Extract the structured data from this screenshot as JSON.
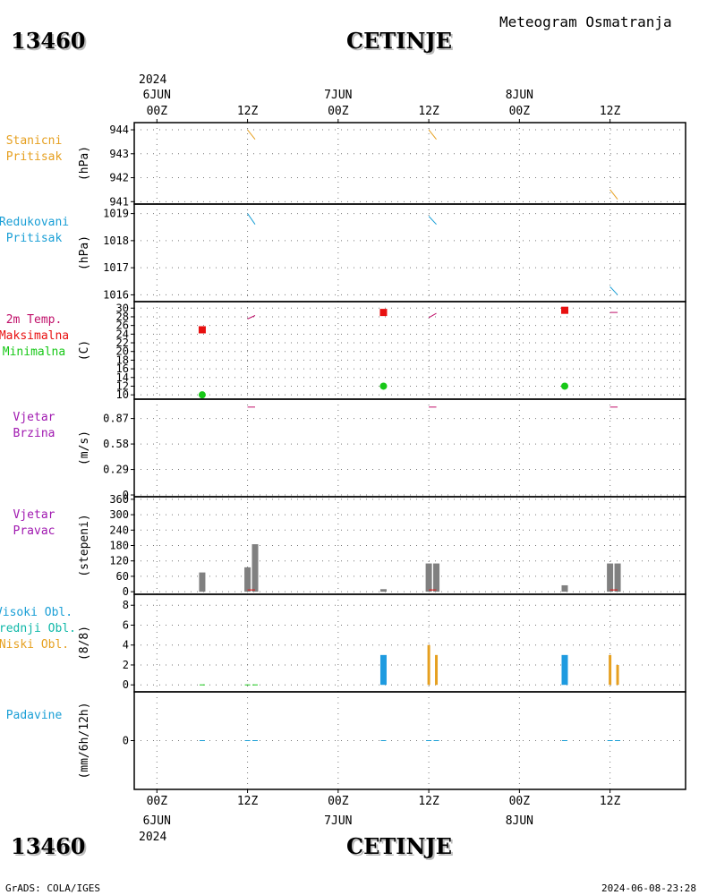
{
  "header": {
    "station_id": "13460",
    "station_name": "CETINJE",
    "title": "Meteogram Osmatranja"
  },
  "footer": {
    "credit": "GrADS: COLA/IGES",
    "timestamp": "2024-06-08-23:28"
  },
  "time_axis": {
    "top_year": "2024",
    "bottom_year": "2024",
    "ticks": [
      {
        "t": 0,
        "hour": "00Z",
        "date": "6JUN"
      },
      {
        "t": 12,
        "hour": "12Z",
        "date": ""
      },
      {
        "t": 24,
        "hour": "00Z",
        "date": "7JUN"
      },
      {
        "t": 36,
        "hour": "12Z",
        "date": ""
      },
      {
        "t": 48,
        "hour": "00Z",
        "date": "8JUN"
      },
      {
        "t": 60,
        "hour": "12Z",
        "date": ""
      }
    ],
    "range_hours": [
      -3,
      70
    ]
  },
  "colors": {
    "orange": "#e6a020",
    "cyan": "#1a9fd6",
    "magenta": "#c0106a",
    "red": "#e81010",
    "green": "#18c818",
    "purple": "#a018b0",
    "teal": "#10b8a8",
    "gray": "#808080",
    "blue": "#1e9be0"
  },
  "chart_data": [
    {
      "type": "line",
      "panel": "stanicni",
      "labels": [
        {
          "text": "Stanicni",
          "color": "#e6a020"
        },
        {
          "text": "Pritisak",
          "color": "#e6a020"
        }
      ],
      "ylabel": "(hPa)",
      "yticks": [
        941,
        942,
        943,
        944
      ],
      "ylim": [
        940.9,
        944.3
      ],
      "segments": [
        {
          "t": [
            12,
            13
          ],
          "y": [
            944.0,
            943.6
          ],
          "color": "#e6a020"
        },
        {
          "t": [
            36,
            37
          ],
          "y": [
            944.0,
            943.6
          ],
          "color": "#e6a020"
        },
        {
          "t": [
            60,
            61
          ],
          "y": [
            941.5,
            941.1
          ],
          "color": "#e6a020"
        }
      ]
    },
    {
      "type": "line",
      "panel": "redukovani",
      "labels": [
        {
          "text": "Redukovani",
          "color": "#1a9fd6"
        },
        {
          "text": "Pritisak",
          "color": "#1a9fd6"
        }
      ],
      "ylabel": "(hPa)",
      "yticks": [
        1016,
        1017,
        1018,
        1019
      ],
      "ylim": [
        1015.75,
        1019.35
      ],
      "segments": [
        {
          "t": [
            12,
            13
          ],
          "y": [
            1019.0,
            1018.6
          ],
          "color": "#1a9fd6"
        },
        {
          "t": [
            36,
            37
          ],
          "y": [
            1018.9,
            1018.6
          ],
          "color": "#1a9fd6"
        },
        {
          "t": [
            60,
            61
          ],
          "y": [
            1016.3,
            1016.0
          ],
          "color": "#1a9fd6"
        }
      ]
    },
    {
      "type": "scatter",
      "panel": "temperature",
      "labels": [
        {
          "text": "2m Temp.",
          "color": "#c0106a"
        },
        {
          "text": "Maksimalna",
          "color": "#e81010"
        },
        {
          "text": "Minimalna",
          "color": "#18c818"
        }
      ],
      "ylabel": "(C)",
      "yticks": [
        10,
        12,
        14,
        16,
        18,
        20,
        22,
        24,
        26,
        28,
        30
      ],
      "ylim": [
        9,
        31.5
      ],
      "temp_segments": [
        {
          "t": [
            12,
            13
          ],
          "y": [
            27.5,
            28.3
          ],
          "color": "#c0106a"
        },
        {
          "t": [
            36,
            37
          ],
          "y": [
            27.8,
            28.8
          ],
          "color": "#c0106a"
        },
        {
          "t": [
            60,
            61
          ],
          "y": [
            29.0,
            29.0
          ],
          "color": "#c0106a"
        }
      ],
      "maximum": [
        {
          "t": 6,
          "y": 25
        },
        {
          "t": 30,
          "y": 29
        },
        {
          "t": 54,
          "y": 29.5
        }
      ],
      "minimum": [
        {
          "t": 6,
          "y": 10
        },
        {
          "t": 30,
          "y": 12
        },
        {
          "t": 54,
          "y": 12
        }
      ]
    },
    {
      "type": "line",
      "panel": "vjetar_brzina",
      "labels": [
        {
          "text": "Vjetar",
          "color": "#a018b0"
        },
        {
          "text": "Brzina",
          "color": "#a018b0"
        }
      ],
      "ylabel": "(m/s)",
      "yticks": [
        0,
        0.29,
        0.58,
        0.87
      ],
      "ytick_labels": [
        "0",
        "0.29",
        "0.58",
        "0.87"
      ],
      "ylim": [
        -0.02,
        1.09
      ],
      "segments": [
        {
          "t": [
            12,
            13
          ],
          "y": [
            1.0,
            1.0
          ],
          "color": "#c0106a"
        },
        {
          "t": [
            36,
            37
          ],
          "y": [
            1.0,
            1.0
          ],
          "color": "#c0106a"
        },
        {
          "t": [
            60,
            61
          ],
          "y": [
            1.0,
            1.0
          ],
          "color": "#c0106a"
        }
      ]
    },
    {
      "type": "bar",
      "panel": "vjetar_pravac",
      "labels": [
        {
          "text": "Vjetar",
          "color": "#a018b0"
        },
        {
          "text": "Pravac",
          "color": "#a018b0"
        }
      ],
      "ylabel": "(stepeni)",
      "yticks": [
        0,
        60,
        120,
        180,
        240,
        300,
        360
      ],
      "ylim": [
        -10,
        370
      ],
      "bars": [
        {
          "t": 6,
          "value": 75
        },
        {
          "t": 12,
          "value": 95
        },
        {
          "t": 13,
          "value": 185
        },
        {
          "t": 30,
          "value": 10
        },
        {
          "t": 36,
          "value": 110
        },
        {
          "t": 37,
          "value": 110
        },
        {
          "t": 54,
          "value": 25
        },
        {
          "t": 60,
          "value": 110
        },
        {
          "t": 61,
          "value": 110
        }
      ]
    },
    {
      "type": "bar",
      "panel": "oblaci",
      "labels": [
        {
          "text": "Visoki Obl.",
          "color": "#1a9fd6"
        },
        {
          "text": "Srednji Obl.",
          "color": "#10b8a8"
        },
        {
          "text": "Niski Obl.",
          "color": "#e6a020"
        }
      ],
      "ylabel": "(8/8)",
      "yticks": [
        0,
        2,
        4,
        6,
        8
      ],
      "ylim": [
        -0.7,
        9.1
      ],
      "series": [
        {
          "name": "Visoki Obl.",
          "color": "#1e9be0",
          "bars": [
            {
              "t": 30,
              "value": 3
            },
            {
              "t": 54,
              "value": 3
            }
          ]
        },
        {
          "name": "Niski Obl.",
          "color": "#e6a020",
          "bars": [
            {
              "t": 36,
              "value": 4
            },
            {
              "t": 37,
              "value": 3
            },
            {
              "t": 60,
              "value": 3
            },
            {
              "t": 61,
              "value": 2
            }
          ]
        }
      ],
      "zero_marks": [
        6,
        12,
        13
      ]
    },
    {
      "type": "line",
      "panel": "padavine",
      "labels": [
        {
          "text": "Padavine",
          "color": "#1a9fd6"
        }
      ],
      "ylabel": "(mm/6h/12h)",
      "yticks": [
        0
      ],
      "ylim": [
        -3.5,
        3.5
      ],
      "zero_marks": [
        6,
        12,
        13,
        30,
        36,
        37,
        54,
        60,
        61
      ]
    }
  ]
}
